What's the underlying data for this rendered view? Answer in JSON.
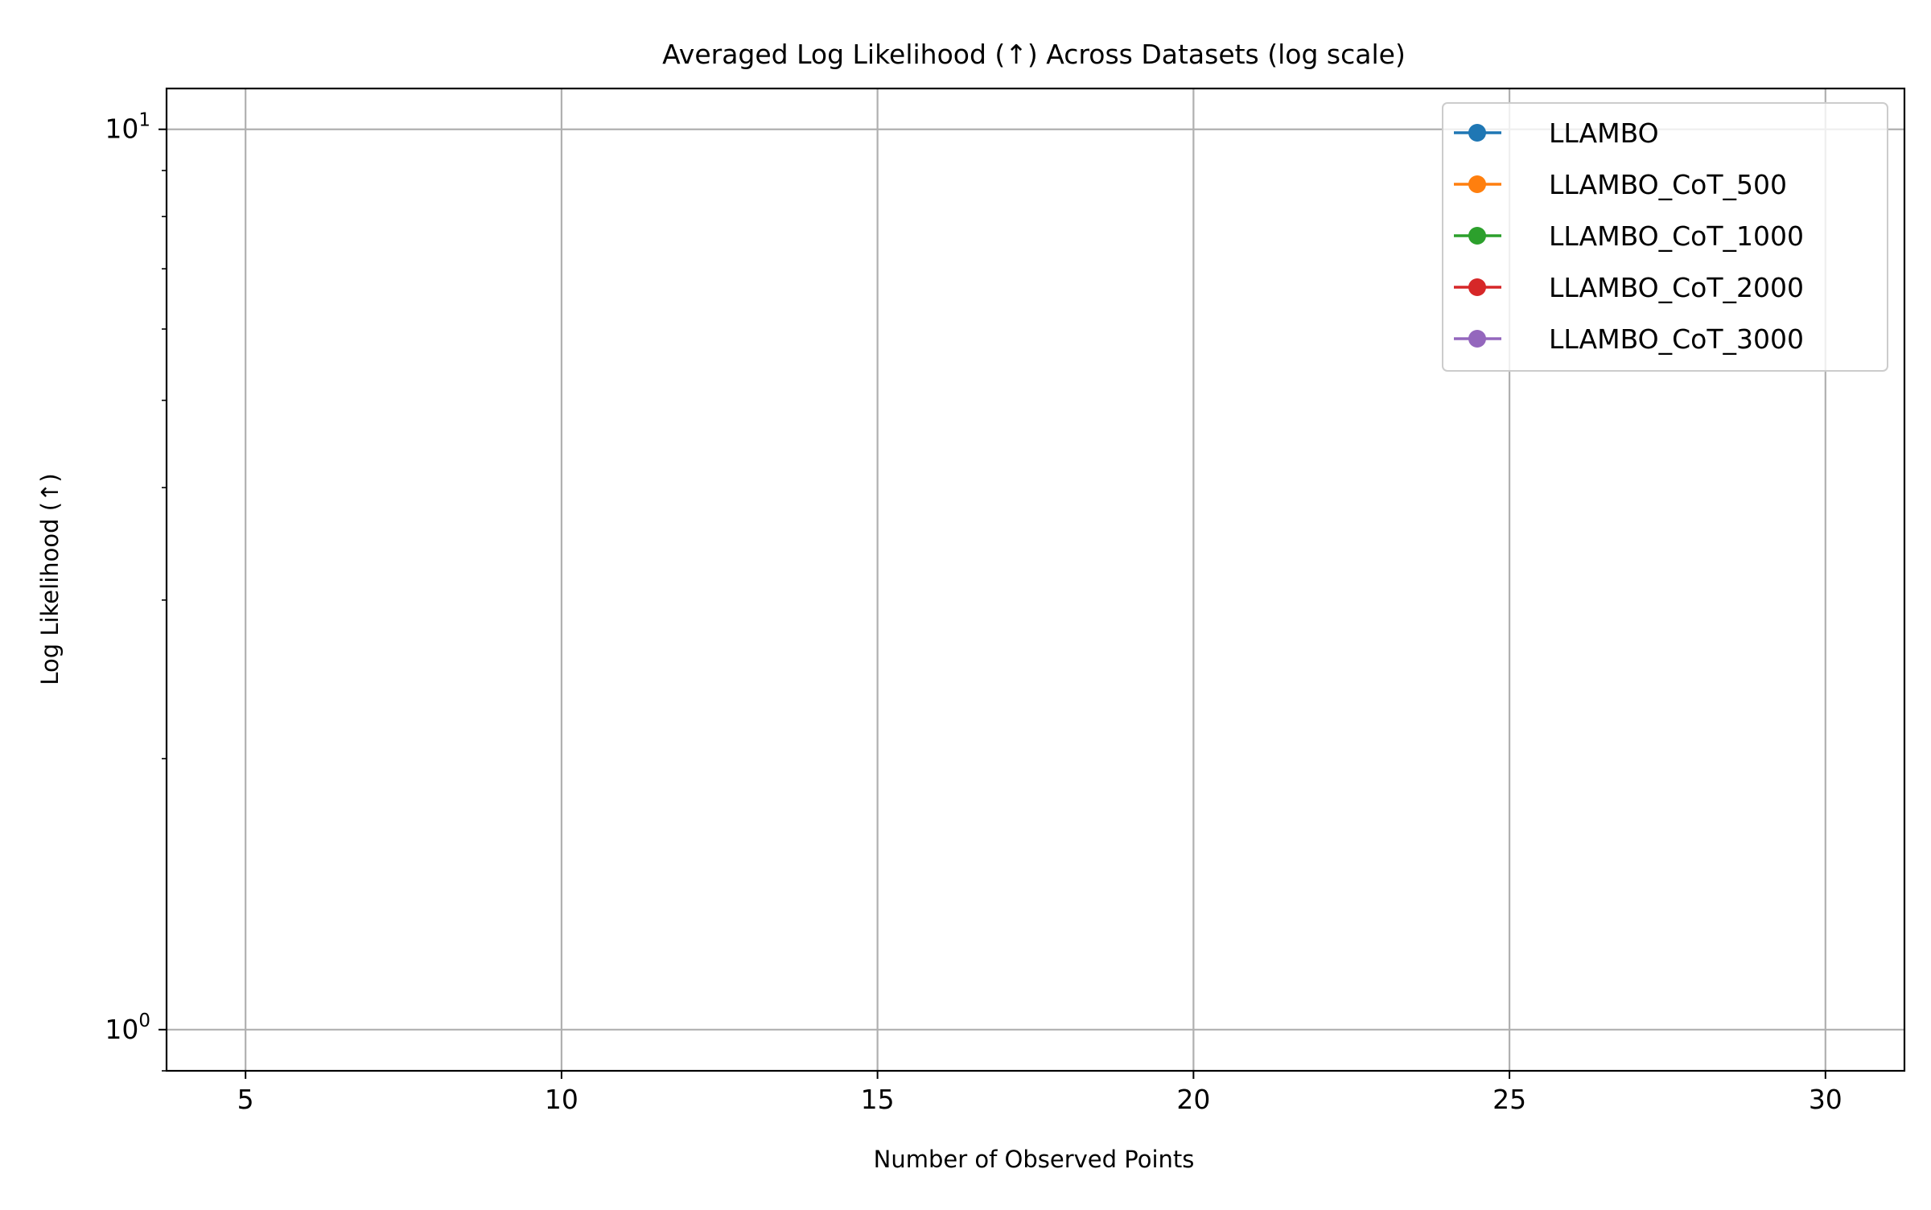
{
  "chart_data": {
    "type": "line",
    "title": "Averaged Log Likelihood (↑) Across Datasets (log scale)",
    "xlabel": "Number of Observed Points",
    "ylabel": "Log Likelihood (↑)",
    "xlim": [
      3.75,
      31.25
    ],
    "ylim": [
      0.9,
      11.1
    ],
    "yscale": "log",
    "grid": true,
    "legend_position": "top-right",
    "x_ticks": [
      {
        "value": 5,
        "label": "5"
      },
      {
        "value": 10,
        "label": "10"
      },
      {
        "value": 15,
        "label": "15"
      },
      {
        "value": 20,
        "label": "20"
      },
      {
        "value": 25,
        "label": "25"
      },
      {
        "value": 30,
        "label": "30"
      }
    ],
    "y_major_ticks": [
      {
        "value": 1,
        "base": "10",
        "exp": "0"
      },
      {
        "value": 10,
        "base": "10",
        "exp": "1"
      }
    ],
    "y_minor_ticks": [
      0.9,
      2,
      3,
      4,
      5,
      6,
      7,
      8,
      9
    ],
    "series": [
      {
        "name": "LLAMBO",
        "color": "#1f77b4",
        "values": []
      },
      {
        "name": "LLAMBO_CoT_500",
        "color": "#ff7f0e",
        "values": []
      },
      {
        "name": "LLAMBO_CoT_1000",
        "color": "#2ca02c",
        "values": []
      },
      {
        "name": "LLAMBO_CoT_2000",
        "color": "#d62728",
        "values": []
      },
      {
        "name": "LLAMBO_CoT_3000",
        "color": "#9467bd",
        "values": []
      }
    ]
  }
}
